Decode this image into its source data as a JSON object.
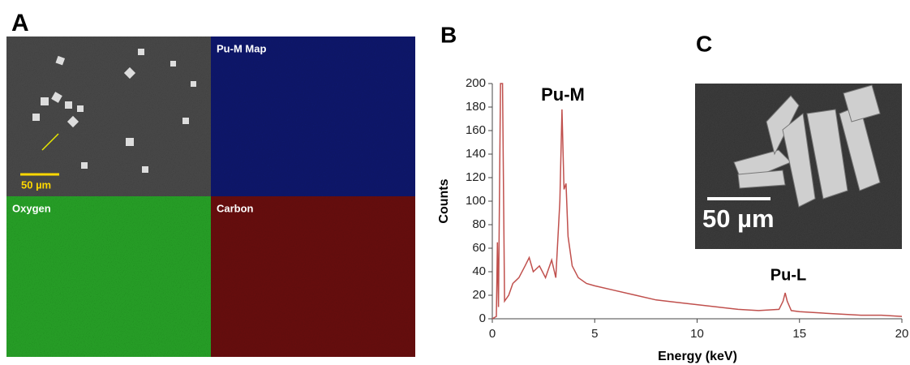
{
  "labels": [
    "A",
    "B",
    "C"
  ],
  "panel_a": {
    "scale_bar": "50 µm",
    "tiles": [
      "Pu-M Map",
      "Oxygen",
      "Carbon"
    ]
  },
  "panel_c": {
    "scale_bar": "50 µm"
  },
  "chart_data": {
    "type": "line",
    "xlabel": "Energy (keV)",
    "ylabel": "Counts",
    "annotations": [
      "Pu-M",
      "Pu-L"
    ],
    "color": "#c0504d",
    "x": [
      0,
      0.2,
      0.25,
      0.3,
      0.4,
      0.5,
      0.6,
      0.8,
      1.0,
      1.3,
      1.6,
      1.8,
      2.0,
      2.3,
      2.6,
      2.9,
      3.1,
      3.3,
      3.4,
      3.5,
      3.6,
      3.7,
      3.9,
      4.2,
      4.6,
      5,
      6,
      7,
      8,
      9,
      10,
      11,
      12,
      13,
      14,
      14.2,
      14.3,
      14.4,
      14.6,
      15,
      16,
      17,
      18,
      19,
      20
    ],
    "values": [
      0,
      2,
      65,
      10,
      200,
      200,
      15,
      20,
      30,
      35,
      45,
      52,
      40,
      45,
      35,
      50,
      35,
      100,
      178,
      110,
      115,
      70,
      45,
      35,
      30,
      28,
      24,
      20,
      16,
      14,
      12,
      10,
      8,
      7,
      8,
      15,
      22,
      15,
      7,
      6,
      5,
      4,
      3,
      3,
      2
    ],
    "xlim": [
      0,
      20
    ],
    "ylim": [
      0,
      200
    ],
    "xticks": [
      0,
      5,
      10,
      15,
      20
    ],
    "yticks": [
      0,
      20,
      40,
      60,
      80,
      100,
      120,
      140,
      160,
      180,
      200
    ]
  }
}
